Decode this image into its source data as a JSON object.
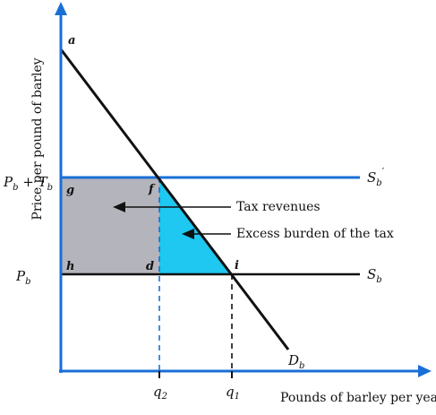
{
  "diagram": {
    "y_axis_label": "Price per pound of barley",
    "x_axis_label": "Pounds of barley per year",
    "price_labels": {
      "taxed_main": "P",
      "taxed_main_sub": "b",
      "taxed_plus": " + T",
      "taxed_plus_sub": "b",
      "base_main": "P",
      "base_main_sub": "b"
    },
    "quantity_labels": {
      "q2_main": "q",
      "q2_sub": "2",
      "q1_main": "q",
      "q1_sub": "1"
    },
    "curve_labels": {
      "supply_taxed_main": "S",
      "supply_taxed_sub": "b",
      "supply_taxed_prime": "′",
      "supply_main": "S",
      "supply_sub": "b",
      "demand_main": "D",
      "demand_sub": "b"
    },
    "points": {
      "a": "a",
      "f": "f",
      "g": "g",
      "h": "h",
      "d": "d",
      "i": "i"
    },
    "annotations": {
      "tax_revenues": "Tax revenues",
      "excess_burden": "Excess burden of the tax"
    },
    "colors": {
      "axes": "#1a6fd6",
      "supply_taxed": "#1a6fd6",
      "supply": "#111111",
      "demand": "#111111",
      "tax_revenue_fill": "#b4b4bc",
      "excess_burden_fill": "#1ec8f0",
      "dashed_q2": "#1a6fd6",
      "dashed_q1": "#111111"
    }
  }
}
